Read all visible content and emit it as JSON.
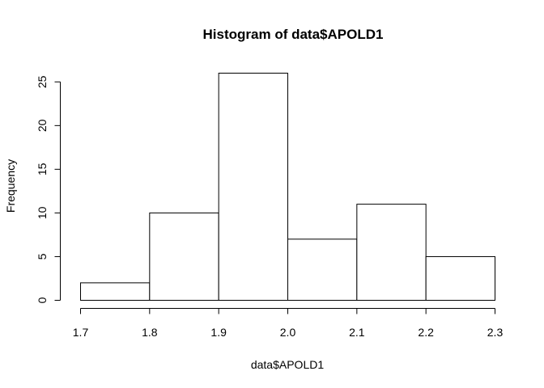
{
  "chart_data": {
    "type": "bar",
    "title": "Histogram of data$APOLD1",
    "xlabel": "data$APOLD1",
    "ylabel": "Frequency",
    "bins": [
      {
        "start": 1.7,
        "end": 1.8,
        "count": 2
      },
      {
        "start": 1.8,
        "end": 1.9,
        "count": 10
      },
      {
        "start": 1.9,
        "end": 2.0,
        "count": 26
      },
      {
        "start": 2.0,
        "end": 2.1,
        "count": 7
      },
      {
        "start": 2.1,
        "end": 2.2,
        "count": 11
      },
      {
        "start": 2.2,
        "end": 2.3,
        "count": 5
      }
    ],
    "xlim": [
      1.7,
      2.3
    ],
    "ylim": [
      0,
      26
    ],
    "x_ticks": [
      1.7,
      1.8,
      1.9,
      2.0,
      2.1,
      2.2,
      2.3
    ],
    "x_tick_labels": [
      "1.7",
      "1.8",
      "1.9",
      "2.0",
      "2.1",
      "2.2",
      "2.3"
    ],
    "y_ticks": [
      0,
      5,
      10,
      15,
      20,
      25
    ],
    "y_tick_labels": [
      "0",
      "5",
      "10",
      "15",
      "20",
      "25"
    ],
    "grid": false,
    "bar_fill": "#ffffff",
    "bar_stroke": "#000000"
  }
}
